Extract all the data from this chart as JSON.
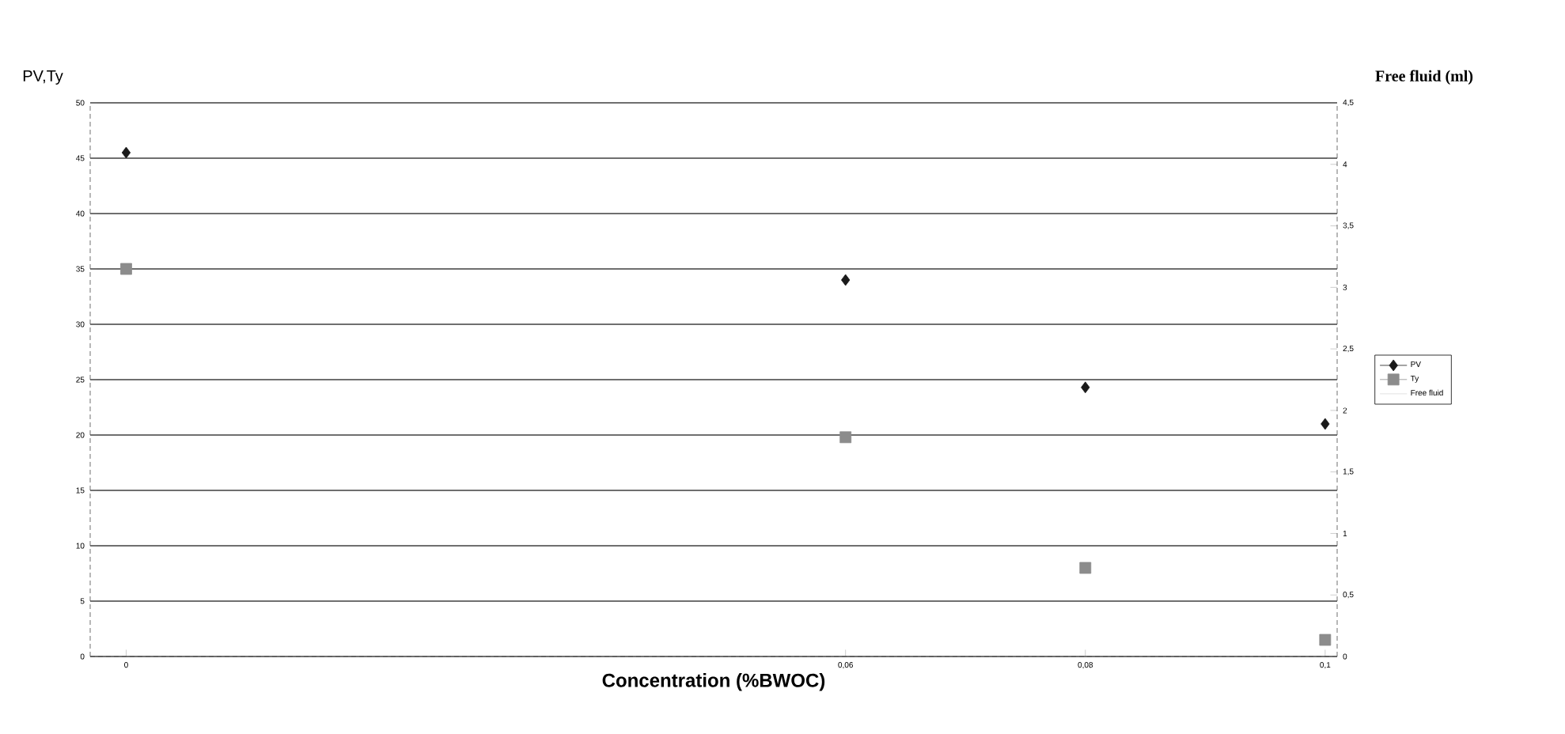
{
  "chart_data": {
    "type": "scatter",
    "xlabel": "Concentration (%BWOC)",
    "ylabel": "PV,Ty",
    "y2label": "Free fluid (ml)",
    "x": [
      0,
      0.06,
      0.08,
      0.1
    ],
    "series": [
      {
        "name": "PV",
        "color": "#1a1a1a",
        "marker": "diamond",
        "values": [
          45.5,
          34,
          24.3,
          21
        ]
      },
      {
        "name": "Ty",
        "color": "#8c8c8c",
        "marker": "square",
        "values": [
          35,
          19.8,
          8,
          1.5
        ]
      },
      {
        "name": "Free fluid",
        "color": "#d9d9d9",
        "values": [
          null,
          null,
          null,
          null
        ]
      }
    ],
    "xlim": [
      -0.003,
      0.101
    ],
    "xticks": [
      0,
      {
        "value": 0.06,
        "label": "0,06"
      },
      {
        "value": 0.08,
        "label": "0,08"
      },
      {
        "value": 0.1,
        "label": "0,1"
      }
    ],
    "ylim": [
      0,
      50
    ],
    "yticks": [
      0,
      5,
      10,
      15,
      20,
      25,
      30,
      35,
      40,
      45,
      50
    ],
    "y2lim": [
      0,
      4.5
    ],
    "y2ticks": [
      0,
      {
        "value": 0.5,
        "label": "0,5"
      },
      1,
      {
        "value": 1.5,
        "label": "1,5"
      },
      2,
      {
        "value": 2.5,
        "label": "2,5"
      },
      3,
      {
        "value": 3.5,
        "label": "3,5"
      },
      4,
      {
        "value": 4.5,
        "label": "4,5"
      }
    ],
    "grid": "y",
    "legend": "right"
  }
}
